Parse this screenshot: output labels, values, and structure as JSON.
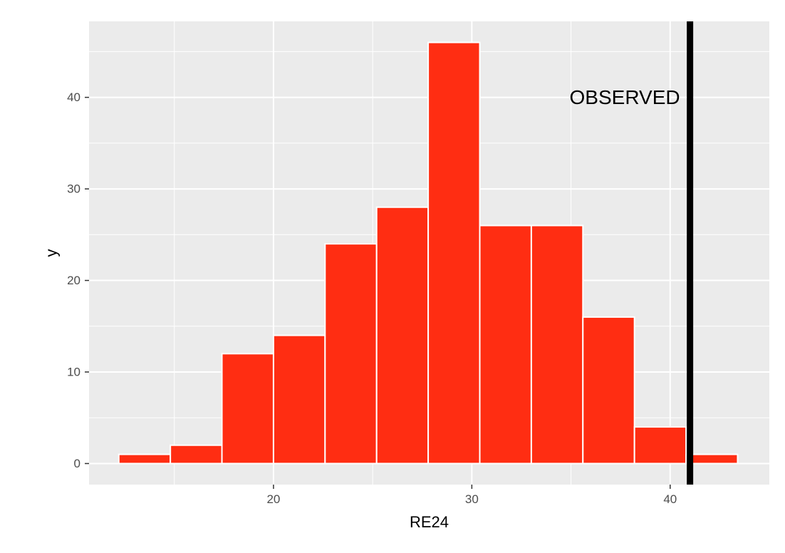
{
  "chart_data": {
    "type": "bar",
    "subtype": "histogram",
    "xlabel": "RE24",
    "ylabel": "y",
    "bins": [
      {
        "x_start": 12.2,
        "x_end": 14.8,
        "count": 1
      },
      {
        "x_start": 14.8,
        "x_end": 17.4,
        "count": 2
      },
      {
        "x_start": 17.4,
        "x_end": 20.0,
        "count": 12
      },
      {
        "x_start": 20.0,
        "x_end": 22.6,
        "count": 14
      },
      {
        "x_start": 22.6,
        "x_end": 25.2,
        "count": 24
      },
      {
        "x_start": 25.2,
        "x_end": 27.8,
        "count": 28
      },
      {
        "x_start": 27.8,
        "x_end": 30.4,
        "count": 46
      },
      {
        "x_start": 30.4,
        "x_end": 33.0,
        "count": 26
      },
      {
        "x_start": 33.0,
        "x_end": 35.6,
        "count": 26
      },
      {
        "x_start": 35.6,
        "x_end": 38.2,
        "count": 16
      },
      {
        "x_start": 38.2,
        "x_end": 40.8,
        "count": 4
      },
      {
        "x_start": 40.8,
        "x_end": 43.4,
        "count": 1
      }
    ],
    "xlim": [
      10.7,
      45.0
    ],
    "ylim": [
      -2.3,
      48.3
    ],
    "x_ticks": [
      20,
      30,
      40
    ],
    "y_ticks": [
      0,
      10,
      20,
      30,
      40
    ],
    "x_minor_ticks": [
      15,
      25,
      35
    ],
    "y_minor_ticks": [
      5,
      15,
      25,
      35,
      45
    ],
    "observed_line": {
      "x": 41.0,
      "label": "OBSERVED",
      "label_y": 40
    },
    "grid": true,
    "colors": {
      "bar_fill": "#ff2d12",
      "bar_outline": "#ffffff",
      "panel_background": "#ebebeb",
      "grid": "#ffffff",
      "observed_line": "#000000"
    }
  }
}
